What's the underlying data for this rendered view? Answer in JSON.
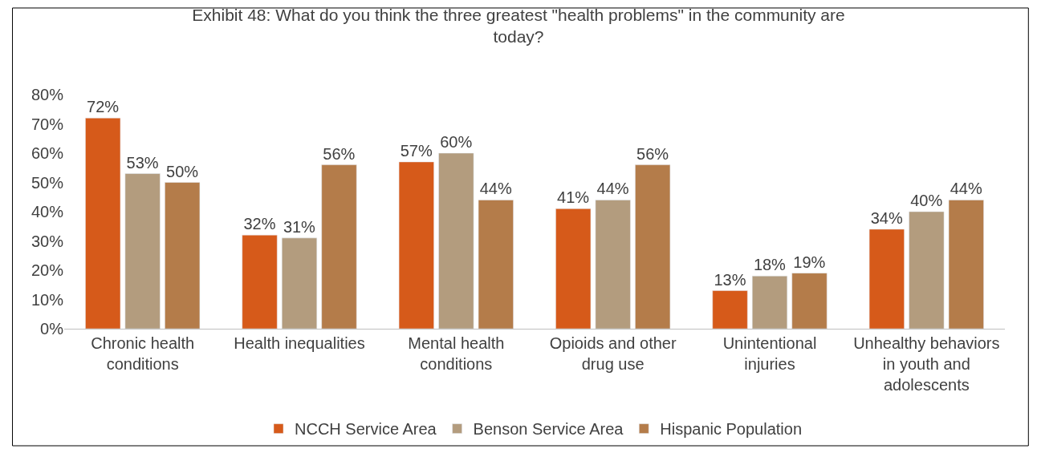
{
  "chart_data": {
    "type": "bar",
    "title": "Exhibit 48: What do you think the three greatest \"health problems\" in the community are today?",
    "categories": [
      "Chronic health conditions",
      "Health inequalities",
      "Mental health conditions",
      "Opioids and other drug use",
      "Unintentional injuries",
      "Unhealthy behaviors in youth and adolescents"
    ],
    "series": [
      {
        "name": "NCCH Service Area",
        "color": "#d65a1a",
        "values": [
          72,
          32,
          57,
          41,
          13,
          34
        ],
        "value_labels": [
          "72%",
          "32%",
          "57%",
          "41%",
          "13%",
          "34%"
        ]
      },
      {
        "name": "Benson Service Area",
        "color": "#b39c7e",
        "values": [
          53,
          31,
          60,
          44,
          18,
          40
        ],
        "value_labels": [
          "53%",
          "31%",
          "60%",
          "44%",
          "18%",
          "40%"
        ]
      },
      {
        "name": "Hispanic Population",
        "color": "#b47c4a",
        "values": [
          50,
          56,
          44,
          56,
          19,
          44
        ],
        "value_labels": [
          "50%",
          "56%",
          "44%",
          "56%",
          "19%",
          "44%"
        ]
      }
    ],
    "ylim": [
      0,
      80
    ],
    "yticks": [
      {
        "value": 0,
        "label": "0%"
      },
      {
        "value": 10,
        "label": "10%"
      },
      {
        "value": 20,
        "label": "20%"
      },
      {
        "value": 30,
        "label": "30%"
      },
      {
        "value": 40,
        "label": "40%"
      },
      {
        "value": 50,
        "label": "50%"
      },
      {
        "value": 60,
        "label": "60%"
      },
      {
        "value": 70,
        "label": "70%"
      },
      {
        "value": 80,
        "label": "80%"
      }
    ],
    "grid": false,
    "legend": "bottom"
  }
}
